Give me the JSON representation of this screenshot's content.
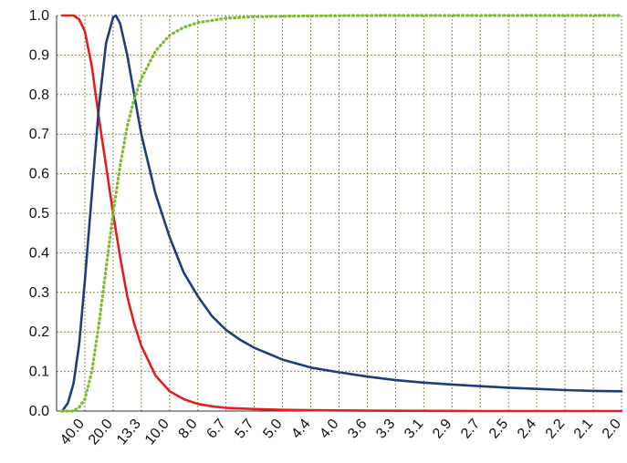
{
  "chart_data": {
    "type": "line",
    "title": "",
    "xlabel": "",
    "ylabel": "",
    "ylim": [
      0,
      1.0
    ],
    "y_ticks": [
      "0.0",
      "0.1",
      "0.2",
      "0.3",
      "0.4",
      "0.5",
      "0.6",
      "0.7",
      "0.8",
      "0.9",
      "1.0"
    ],
    "x_ticks": [
      "40.0",
      "20.0",
      "13.3",
      "10.0",
      "8.0",
      "6.7",
      "5.7",
      "5.0",
      "4.4",
      "4.0",
      "3.6",
      "3.3",
      "3.1",
      "2.9",
      "2.7",
      "2.5",
      "2.4",
      "2.2",
      "2.1",
      "2.0"
    ],
    "grid": true,
    "legend": "none",
    "series": [
      {
        "color": "#e02020",
        "style": "solid",
        "points": [
          [
            -0.8,
            1.0
          ],
          [
            -0.4,
            1.0
          ],
          [
            -0.2,
            0.99
          ],
          [
            0.0,
            0.96
          ],
          [
            0.25,
            0.87
          ],
          [
            0.5,
            0.74
          ],
          [
            0.75,
            0.62
          ],
          [
            1.0,
            0.5
          ],
          [
            1.25,
            0.39
          ],
          [
            1.5,
            0.29
          ],
          [
            1.75,
            0.22
          ],
          [
            2.0,
            0.165
          ],
          [
            2.5,
            0.09
          ],
          [
            3.0,
            0.05
          ],
          [
            3.5,
            0.03
          ],
          [
            4.0,
            0.018
          ],
          [
            4.5,
            0.012
          ],
          [
            5.0,
            0.008
          ],
          [
            6.0,
            0.005
          ],
          [
            7.0,
            0.003
          ],
          [
            8.0,
            0.002
          ],
          [
            10.0,
            0.001
          ],
          [
            14.0,
            0.0
          ],
          [
            19.0,
            0.0
          ]
        ]
      },
      {
        "color": "#1f3d7a",
        "style": "solid",
        "points": [
          [
            -0.8,
            0.0
          ],
          [
            -0.6,
            0.02
          ],
          [
            -0.4,
            0.07
          ],
          [
            -0.2,
            0.17
          ],
          [
            0.0,
            0.33
          ],
          [
            0.25,
            0.55
          ],
          [
            0.5,
            0.77
          ],
          [
            0.75,
            0.93
          ],
          [
            1.0,
            0.995
          ],
          [
            1.1,
            1.0
          ],
          [
            1.25,
            0.98
          ],
          [
            1.5,
            0.9
          ],
          [
            1.75,
            0.8
          ],
          [
            2.0,
            0.7
          ],
          [
            2.5,
            0.55
          ],
          [
            3.0,
            0.44
          ],
          [
            3.5,
            0.35
          ],
          [
            4.0,
            0.29
          ],
          [
            4.5,
            0.24
          ],
          [
            5.0,
            0.205
          ],
          [
            5.5,
            0.18
          ],
          [
            6.0,
            0.16
          ],
          [
            6.5,
            0.145
          ],
          [
            7.0,
            0.13
          ],
          [
            8.0,
            0.11
          ],
          [
            9.0,
            0.098
          ],
          [
            10.0,
            0.087
          ],
          [
            11.0,
            0.078
          ],
          [
            12.0,
            0.072
          ],
          [
            13.0,
            0.067
          ],
          [
            14.0,
            0.063
          ],
          [
            15.0,
            0.059
          ],
          [
            16.0,
            0.056
          ],
          [
            17.0,
            0.053
          ],
          [
            18.0,
            0.051
          ],
          [
            19.0,
            0.05
          ]
        ]
      },
      {
        "color": "#7dbb2f",
        "style": "dotted",
        "points": [
          [
            -0.8,
            0.0
          ],
          [
            -0.4,
            0.0
          ],
          [
            -0.2,
            0.01
          ],
          [
            0.0,
            0.03
          ],
          [
            0.25,
            0.1
          ],
          [
            0.5,
            0.22
          ],
          [
            0.75,
            0.36
          ],
          [
            1.0,
            0.5
          ],
          [
            1.25,
            0.62
          ],
          [
            1.5,
            0.72
          ],
          [
            1.75,
            0.79
          ],
          [
            2.0,
            0.84
          ],
          [
            2.5,
            0.91
          ],
          [
            3.0,
            0.95
          ],
          [
            3.5,
            0.97
          ],
          [
            4.0,
            0.982
          ],
          [
            5.0,
            0.993
          ],
          [
            6.0,
            0.997
          ],
          [
            8.0,
            0.999
          ],
          [
            10.0,
            1.0
          ],
          [
            14.0,
            1.0
          ],
          [
            19.0,
            1.0
          ]
        ]
      }
    ]
  }
}
